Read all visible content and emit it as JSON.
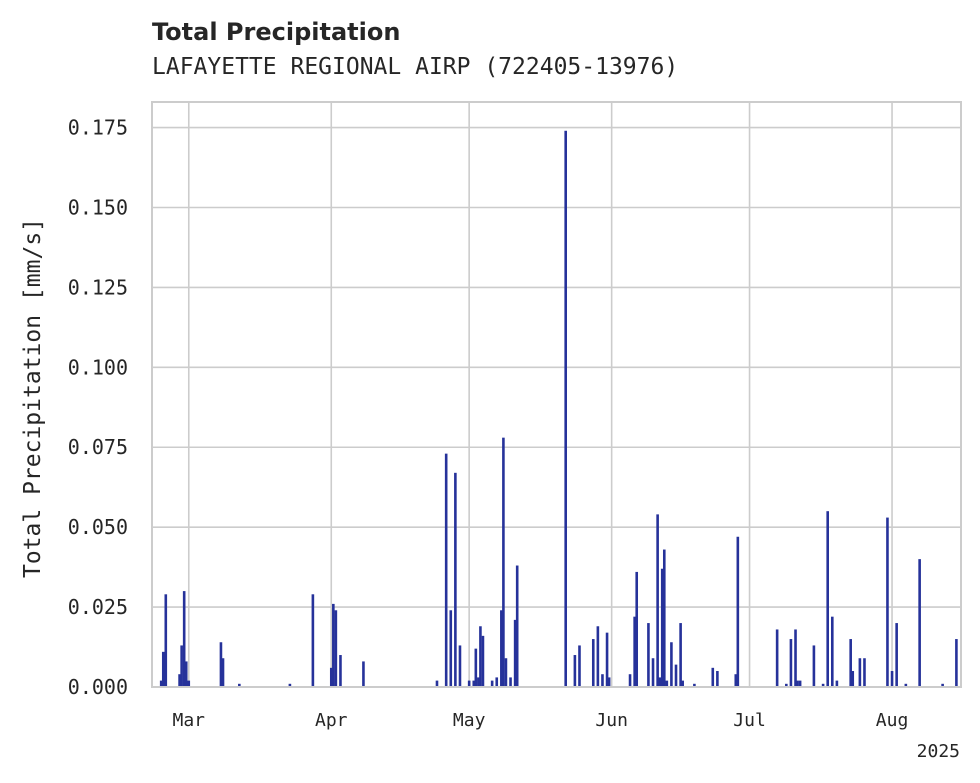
{
  "chart_data": {
    "type": "bar",
    "title": "Total Precipitation",
    "subtitle": "LAFAYETTE REGIONAL AIRP (722405-13976)",
    "ylabel": "Total Precipitation [mm/s]",
    "xlabel": "",
    "year_label": "2025",
    "ylim": [
      0,
      0.183
    ],
    "grid": true,
    "color": "#26329a",
    "date_range": [
      "2025-02-21",
      "2025-08-16"
    ],
    "yticks": [
      0.0,
      0.025,
      0.05,
      0.075,
      0.1,
      0.125,
      0.15,
      0.175
    ],
    "ytick_labels": [
      "0.000",
      "0.025",
      "0.050",
      "0.075",
      "0.100",
      "0.125",
      "0.150",
      "0.175"
    ],
    "xticks": [
      {
        "date": "2025-03-01",
        "label": "Mar"
      },
      {
        "date": "2025-04-01",
        "label": "Apr"
      },
      {
        "date": "2025-05-01",
        "label": "May"
      },
      {
        "date": "2025-06-01",
        "label": "Jun"
      },
      {
        "date": "2025-07-01",
        "label": "Jul"
      },
      {
        "date": "2025-08-01",
        "label": "Aug"
      }
    ],
    "points": [
      [
        "2025-02-23",
        0.002
      ],
      [
        "2025-02-23",
        0.011
      ],
      [
        "2025-02-24",
        0.029
      ],
      [
        "2025-02-27",
        0.004
      ],
      [
        "2025-02-27",
        0.013
      ],
      [
        "2025-02-28",
        0.03
      ],
      [
        "2025-02-28",
        0.008
      ],
      [
        "2025-03-01",
        0.002
      ],
      [
        "2025-03-08",
        0.014
      ],
      [
        "2025-03-08",
        0.009
      ],
      [
        "2025-03-12",
        0.001
      ],
      [
        "2025-03-23",
        0.001
      ],
      [
        "2025-03-28",
        0.029
      ],
      [
        "2025-04-01",
        0.006
      ],
      [
        "2025-04-01",
        0.026
      ],
      [
        "2025-04-02",
        0.024
      ],
      [
        "2025-04-03",
        0.01
      ],
      [
        "2025-04-08",
        0.008
      ],
      [
        "2025-04-24",
        0.002
      ],
      [
        "2025-04-26",
        0.073
      ],
      [
        "2025-04-27",
        0.024
      ],
      [
        "2025-04-28",
        0.067
      ],
      [
        "2025-04-29",
        0.013
      ],
      [
        "2025-05-01",
        0.002
      ],
      [
        "2025-05-02",
        0.002
      ],
      [
        "2025-05-02",
        0.012
      ],
      [
        "2025-05-03",
        0.003
      ],
      [
        "2025-05-03",
        0.019
      ],
      [
        "2025-05-04",
        0.016
      ],
      [
        "2025-05-06",
        0.002
      ],
      [
        "2025-05-07",
        0.003
      ],
      [
        "2025-05-08",
        0.024
      ],
      [
        "2025-05-08",
        0.078
      ],
      [
        "2025-05-09",
        0.009
      ],
      [
        "2025-05-10",
        0.003
      ],
      [
        "2025-05-11",
        0.021
      ],
      [
        "2025-05-11",
        0.038
      ],
      [
        "2025-05-22",
        0.174
      ],
      [
        "2025-05-24",
        0.01
      ],
      [
        "2025-05-25",
        0.013
      ],
      [
        "2025-05-28",
        0.015
      ],
      [
        "2025-05-29",
        0.019
      ],
      [
        "2025-05-30",
        0.004
      ],
      [
        "2025-05-31",
        0.017
      ],
      [
        "2025-05-31",
        0.003
      ],
      [
        "2025-06-05",
        0.004
      ],
      [
        "2025-06-06",
        0.022
      ],
      [
        "2025-06-06",
        0.036
      ],
      [
        "2025-06-09",
        0.02
      ],
      [
        "2025-06-10",
        0.009
      ],
      [
        "2025-06-11",
        0.054
      ],
      [
        "2025-06-11",
        0.003
      ],
      [
        "2025-06-12",
        0.037
      ],
      [
        "2025-06-12",
        0.043
      ],
      [
        "2025-06-13",
        0.002
      ],
      [
        "2025-06-14",
        0.014
      ],
      [
        "2025-06-15",
        0.007
      ],
      [
        "2025-06-16",
        0.02
      ],
      [
        "2025-06-16",
        0.002
      ],
      [
        "2025-06-19",
        0.001
      ],
      [
        "2025-06-23",
        0.006
      ],
      [
        "2025-06-24",
        0.005
      ],
      [
        "2025-06-28",
        0.004
      ],
      [
        "2025-06-28",
        0.047
      ],
      [
        "2025-07-07",
        0.018
      ],
      [
        "2025-07-09",
        0.001
      ],
      [
        "2025-07-10",
        0.015
      ],
      [
        "2025-07-11",
        0.018
      ],
      [
        "2025-07-11",
        0.002
      ],
      [
        "2025-07-12",
        0.002
      ],
      [
        "2025-07-15",
        0.013
      ],
      [
        "2025-07-17",
        0.001
      ],
      [
        "2025-07-18",
        0.055
      ],
      [
        "2025-07-19",
        0.022
      ],
      [
        "2025-07-20",
        0.002
      ],
      [
        "2025-07-23",
        0.015
      ],
      [
        "2025-07-23",
        0.005
      ],
      [
        "2025-07-25",
        0.009
      ],
      [
        "2025-07-26",
        0.009
      ],
      [
        "2025-07-31",
        0.053
      ],
      [
        "2025-08-01",
        0.005
      ],
      [
        "2025-08-02",
        0.02
      ],
      [
        "2025-08-04",
        0.001
      ],
      [
        "2025-08-07",
        0.04
      ],
      [
        "2025-08-12",
        0.001
      ],
      [
        "2025-08-15",
        0.015
      ]
    ]
  }
}
